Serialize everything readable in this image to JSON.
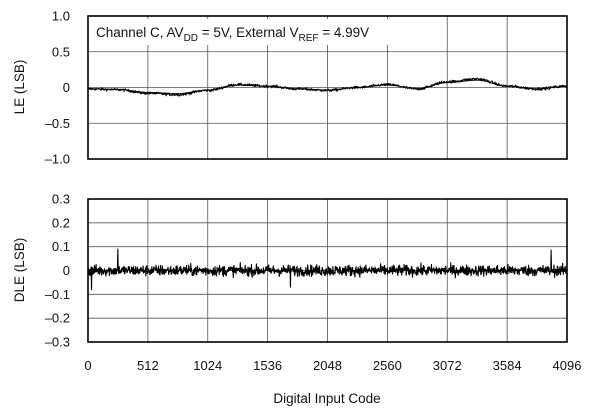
{
  "chart_data": [
    {
      "type": "line",
      "annotation": {
        "pre": "Channel C, AV",
        "sub1": "DD",
        "mid": " = 5V, External V",
        "sub2": "REF",
        "post": " = 4.99V"
      },
      "ylabel": "LE (LSB)",
      "ylim": [
        -1.0,
        1.0
      ],
      "yticks": [
        1.0,
        0.5,
        0,
        -0.5,
        -1.0
      ],
      "ytick_labels": [
        "1.0",
        "0.5",
        "0",
        "–0.5",
        "–1.0"
      ],
      "xlim": [
        0,
        4096
      ],
      "grid": true,
      "series": [
        {
          "x": [
            0,
            256,
            512,
            768,
            1024,
            1280,
            1536,
            1792,
            2048,
            2304,
            2560,
            2816,
            3072,
            3328,
            3584,
            3840,
            4096
          ],
          "values": [
            -0.02,
            -0.03,
            -0.08,
            -0.1,
            -0.04,
            0.04,
            0.02,
            -0.02,
            -0.04,
            0.0,
            0.04,
            -0.02,
            0.08,
            0.12,
            0.02,
            -0.02,
            0.02
          ]
        }
      ]
    },
    {
      "type": "line",
      "ylabel": "DLE (LSB)",
      "xlabel": "Digital Input Code",
      "ylim": [
        -0.3,
        0.3
      ],
      "yticks": [
        0.3,
        0.2,
        0.1,
        0,
        -0.1,
        -0.2,
        -0.3
      ],
      "ytick_labels": [
        "0.3",
        "0.2",
        "0.1",
        "0",
        "–0.1",
        "–0.2",
        "–0.3"
      ],
      "xlim": [
        0,
        4096
      ],
      "xticks": [
        0,
        512,
        1024,
        1536,
        2048,
        2560,
        3072,
        3584,
        4096
      ],
      "xtick_labels": [
        "0",
        "512",
        "1024",
        "1536",
        "2048",
        "2560",
        "3072",
        "3584",
        "4096"
      ],
      "grid": true,
      "series": [
        {
          "x": [
            0,
            512,
            1024,
            1536,
            2048,
            2560,
            3072,
            3584,
            4096
          ],
          "values": [
            0.0,
            0.0,
            0.0,
            0.0,
            0.0,
            0.0,
            0.0,
            0.0,
            0.0
          ],
          "noise_band": [
            -0.05,
            0.05
          ],
          "peak_max": 0.09,
          "peak_min": -0.08
        }
      ]
    }
  ]
}
